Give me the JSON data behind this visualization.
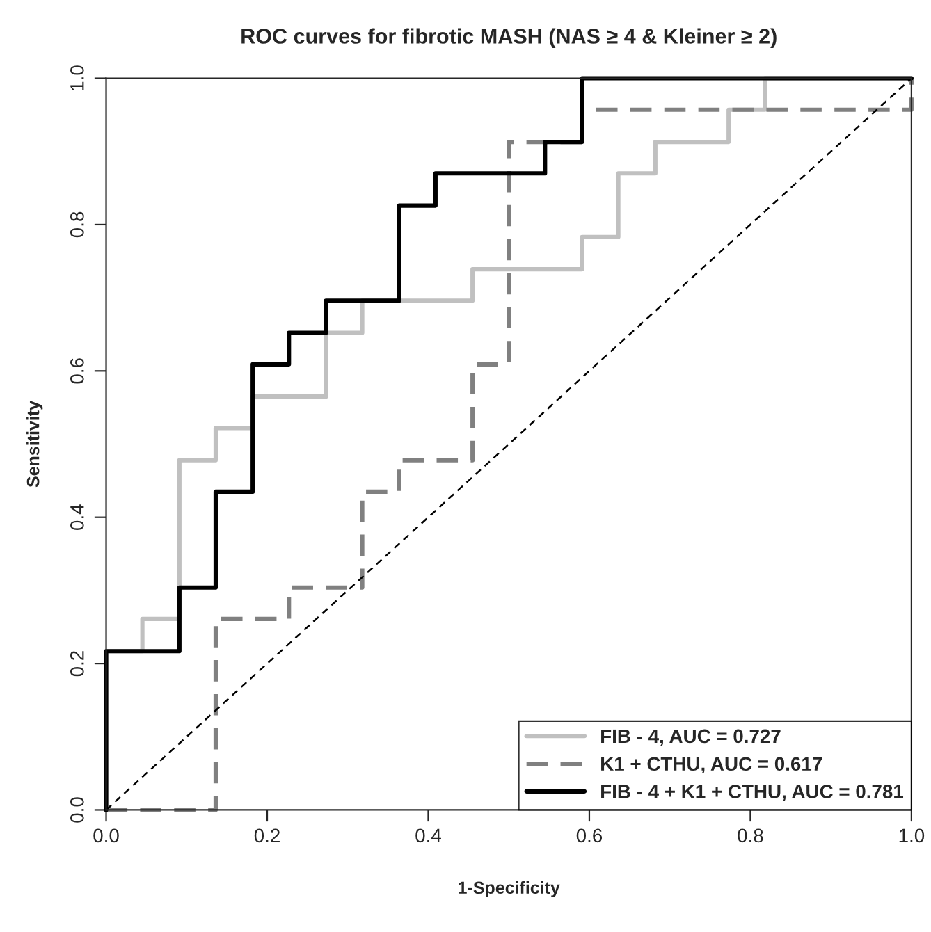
{
  "chart_data": {
    "type": "step",
    "title": "ROC curves for fibrotic MASH (NAS ≥ 4 & Kleiner ≥ 2)",
    "xlabel": "1-Specificity",
    "ylabel": "Sensitivity",
    "xlim": [
      0,
      1
    ],
    "ylim": [
      0,
      1
    ],
    "xticks": [
      {
        "value": 0,
        "label": "0.0"
      },
      {
        "value": 0.2,
        "label": "0.2"
      },
      {
        "value": 0.4,
        "label": "0.4"
      },
      {
        "value": 0.6,
        "label": "0.6"
      },
      {
        "value": 0.8,
        "label": "0.8"
      },
      {
        "value": 1,
        "label": "1.0"
      }
    ],
    "yticks": [
      {
        "value": 0,
        "label": "0.0"
      },
      {
        "value": 0.2,
        "label": "0.2"
      },
      {
        "value": 0.4,
        "label": "0.4"
      },
      {
        "value": 0.6,
        "label": "0.6"
      },
      {
        "value": 0.8,
        "label": "0.8"
      },
      {
        "value": 1,
        "label": "1.0"
      }
    ],
    "grid": false,
    "legend": "bottom right",
    "series": [
      {
        "name": "FIB - 4, AUC = 0.727",
        "color": "#c0c0c0",
        "line_style": "solid",
        "x": [
          0,
          0,
          0.045,
          0.091,
          0.136,
          0.182,
          0.273,
          0.318,
          0.455,
          0.591,
          0.636,
          0.682,
          0.773,
          0.818,
          1.0
        ],
        "values": [
          0,
          0.217,
          0.261,
          0.478,
          0.522,
          0.565,
          0.652,
          0.696,
          0.739,
          0.783,
          0.87,
          0.913,
          0.957,
          1.0,
          1.0
        ]
      },
      {
        "name": "K1 + CTHU, AUC = 0.617",
        "color": "#808080",
        "line_style": "dashed",
        "x": [
          0,
          0.136,
          0.227,
          0.318,
          0.364,
          0.455,
          0.5,
          0.591,
          1.0,
          1.0
        ],
        "values": [
          0,
          0.261,
          0.304,
          0.435,
          0.478,
          0.609,
          0.913,
          0.957,
          0.957,
          1.0
        ]
      },
      {
        "name": "FIB - 4 + K1 + CTHU, AUC = 0.781",
        "color": "#000000",
        "line_style": "solid",
        "x": [
          0,
          0,
          0.091,
          0.136,
          0.182,
          0.227,
          0.273,
          0.364,
          0.409,
          0.545,
          0.591,
          1.0
        ],
        "values": [
          0,
          0.217,
          0.304,
          0.435,
          0.609,
          0.652,
          0.696,
          0.826,
          0.87,
          0.913,
          1.0,
          1.0
        ]
      },
      {
        "type": "line",
        "color": "#000000",
        "line_style": "dashed",
        "x": [
          0,
          1
        ],
        "values": [
          0,
          1
        ]
      }
    ]
  }
}
